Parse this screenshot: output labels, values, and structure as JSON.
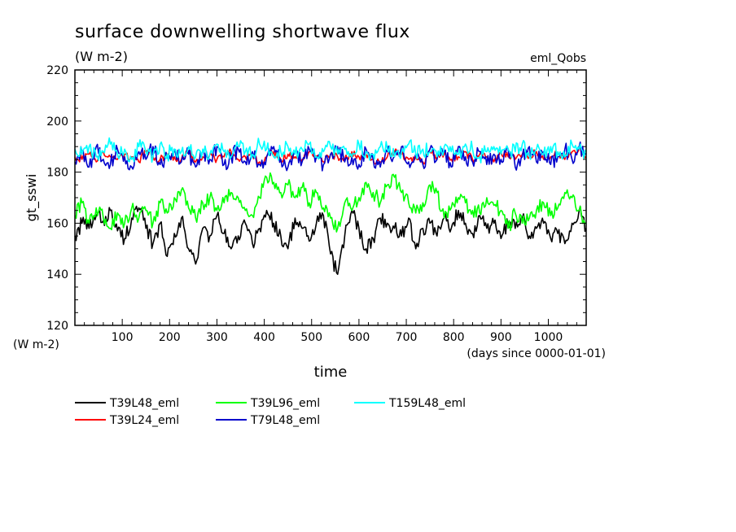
{
  "chart_data": {
    "type": "line",
    "title": "surface downwelling shortwave flux",
    "subtitle": "(W m-2)",
    "annotation_right": "eml_Qobs",
    "ylabel": "gt_sswi",
    "yunit": "(W m-2)",
    "xlabel": "time",
    "xunit": "(days since 0000-01-01)",
    "xlim": [
      0,
      1080
    ],
    "ylim": [
      120,
      220
    ],
    "xticks": [
      100,
      200,
      300,
      400,
      500,
      600,
      700,
      800,
      900,
      1000
    ],
    "yticks": [
      120,
      140,
      160,
      180,
      200,
      220
    ],
    "grid": false,
    "legend_position": "bottom",
    "series": [
      {
        "name": "T39L48_eml",
        "color": "#000000",
        "x": [
          0,
          15,
          30,
          45,
          60,
          75,
          90,
          105,
          120,
          135,
          150,
          165,
          180,
          195,
          210,
          225,
          240,
          255,
          270,
          285,
          300,
          315,
          330,
          345,
          360,
          375,
          390,
          405,
          420,
          435,
          450,
          465,
          480,
          495,
          510,
          525,
          540,
          555,
          570,
          585,
          600,
          615,
          630,
          645,
          660,
          675,
          690,
          705,
          720,
          735,
          750,
          765,
          780,
          795,
          810,
          825,
          840,
          855,
          870,
          885,
          900,
          915,
          930,
          945,
          960,
          975,
          990,
          1005,
          1020,
          1035,
          1050,
          1065,
          1080
        ],
        "values": [
          155,
          160,
          158,
          163,
          161,
          165,
          157,
          154,
          162,
          166,
          158,
          152,
          160,
          147,
          156,
          162,
          150,
          144,
          158,
          155,
          163,
          156,
          150,
          155,
          160,
          152,
          158,
          165,
          160,
          155,
          150,
          162,
          158,
          153,
          160,
          163,
          148,
          140,
          155,
          165,
          158,
          150,
          154,
          162,
          160,
          158,
          155,
          162,
          150,
          158,
          160,
          155,
          162,
          158,
          165,
          160,
          156,
          163,
          158,
          160,
          154,
          160,
          158,
          162,
          155,
          158,
          160,
          154,
          156,
          152,
          160,
          165,
          158
        ]
      },
      {
        "name": "T39L24_eml",
        "color": "#ff0000",
        "x": [
          0,
          15,
          30,
          45,
          60,
          75,
          90,
          105,
          120,
          135,
          150,
          165,
          180,
          195,
          210,
          225,
          240,
          255,
          270,
          285,
          300,
          315,
          330,
          345,
          360,
          375,
          390,
          405,
          420,
          435,
          450,
          465,
          480,
          495,
          510,
          525,
          540,
          555,
          570,
          585,
          600,
          615,
          630,
          645,
          660,
          675,
          690,
          705,
          720,
          735,
          750,
          765,
          780,
          795,
          810,
          825,
          840,
          855,
          870,
          885,
          900,
          915,
          930,
          945,
          960,
          975,
          990,
          1005,
          1020,
          1035,
          1050,
          1065,
          1080
        ],
        "values": [
          186,
          185,
          187,
          184,
          188,
          186,
          185,
          187,
          186,
          184,
          188,
          186,
          185,
          187,
          186,
          185,
          188,
          184,
          186,
          187,
          185,
          186,
          188,
          185,
          186,
          187,
          184,
          186,
          188,
          185,
          187,
          186,
          185,
          188,
          186,
          184,
          187,
          186,
          185,
          188,
          186,
          187,
          185,
          184,
          186,
          188,
          187,
          185,
          186,
          184,
          188,
          186,
          187,
          185,
          186,
          188,
          185,
          187,
          186,
          184,
          188,
          186,
          185,
          187,
          186,
          188,
          185,
          186,
          187,
          185,
          188,
          189,
          186
        ]
      },
      {
        "name": "T39L96_eml",
        "color": "#00ff00",
        "x": [
          0,
          15,
          30,
          45,
          60,
          75,
          90,
          105,
          120,
          135,
          150,
          165,
          180,
          195,
          210,
          225,
          240,
          255,
          270,
          285,
          300,
          315,
          330,
          345,
          360,
          375,
          390,
          405,
          420,
          435,
          450,
          465,
          480,
          495,
          510,
          525,
          540,
          555,
          570,
          585,
          600,
          615,
          630,
          645,
          660,
          675,
          690,
          705,
          720,
          735,
          750,
          765,
          780,
          795,
          810,
          825,
          840,
          855,
          870,
          885,
          900,
          915,
          930,
          945,
          960,
          975,
          990,
          1005,
          1020,
          1035,
          1050,
          1065,
          1080
        ],
        "values": [
          163,
          168,
          160,
          166,
          162,
          158,
          164,
          160,
          166,
          162,
          165,
          160,
          168,
          164,
          170,
          173,
          166,
          162,
          168,
          170,
          165,
          168,
          172,
          170,
          165,
          163,
          170,
          178,
          176,
          172,
          175,
          170,
          174,
          168,
          172,
          166,
          162,
          158,
          168,
          165,
          170,
          176,
          172,
          168,
          175,
          178,
          172,
          168,
          164,
          168,
          175,
          172,
          162,
          166,
          170,
          168,
          165,
          164,
          170,
          167,
          165,
          158,
          164,
          160,
          162,
          165,
          168,
          163,
          166,
          172,
          170,
          165,
          160
        ]
      },
      {
        "name": "T79L48_eml",
        "color": "#0000cc",
        "x": [
          0,
          15,
          30,
          45,
          60,
          75,
          90,
          105,
          120,
          135,
          150,
          165,
          180,
          195,
          210,
          225,
          240,
          255,
          270,
          285,
          300,
          315,
          330,
          345,
          360,
          375,
          390,
          405,
          420,
          435,
          450,
          465,
          480,
          495,
          510,
          525,
          540,
          555,
          570,
          585,
          600,
          615,
          630,
          645,
          660,
          675,
          690,
          705,
          720,
          735,
          750,
          765,
          780,
          795,
          810,
          825,
          840,
          855,
          870,
          885,
          900,
          915,
          930,
          945,
          960,
          975,
          990,
          1005,
          1020,
          1035,
          1050,
          1065,
          1080
        ],
        "values": [
          184,
          188,
          182,
          190,
          185,
          183,
          189,
          186,
          182,
          188,
          185,
          190,
          183,
          186,
          189,
          184,
          187,
          182,
          188,
          185,
          190,
          183,
          186,
          189,
          184,
          188,
          183,
          186,
          190,
          185,
          182,
          188,
          184,
          189,
          186,
          183,
          187,
          190,
          184,
          186,
          183,
          189,
          185,
          182,
          188,
          186,
          190,
          184,
          187,
          183,
          189,
          185,
          188,
          182,
          190,
          186,
          184,
          188,
          183,
          187,
          185,
          189,
          182,
          186,
          190,
          184,
          188,
          183,
          186,
          189,
          185,
          190,
          187
        ]
      },
      {
        "name": "T159L48_eml",
        "color": "#00ffff",
        "x": [
          0,
          15,
          30,
          45,
          60,
          75,
          90,
          105,
          120,
          135,
          150,
          165,
          180,
          195,
          210,
          225,
          240,
          255,
          270,
          285,
          300,
          315,
          330,
          345,
          360,
          375,
          390,
          405,
          420,
          435,
          450,
          465,
          480,
          495,
          510,
          525,
          540,
          555,
          570,
          585,
          600,
          615,
          630,
          645,
          660,
          675,
          690,
          705,
          720,
          735,
          750,
          765,
          780,
          795,
          810,
          825,
          840,
          855,
          870,
          885,
          900,
          915,
          930,
          945,
          960,
          975,
          990,
          1005,
          1020,
          1035,
          1050,
          1065,
          1080
        ],
        "values": [
          189,
          187,
          190,
          186,
          188,
          191,
          187,
          189,
          185,
          190,
          188,
          186,
          191,
          187,
          189,
          188,
          190,
          186,
          189,
          187,
          191,
          188,
          186,
          190,
          188,
          187,
          191,
          189,
          186,
          188,
          190,
          187,
          189,
          191,
          186,
          188,
          190,
          187,
          189,
          186,
          191,
          188,
          187,
          190,
          189,
          186,
          188,
          191,
          187,
          189,
          188,
          186,
          190,
          188,
          187,
          191,
          189,
          186,
          188,
          190,
          187,
          189,
          188,
          191,
          186,
          189,
          187,
          190,
          188,
          186,
          191,
          189,
          188
        ]
      }
    ]
  }
}
